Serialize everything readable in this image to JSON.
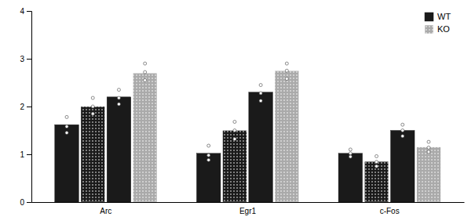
{
  "chart_data": {
    "type": "bar",
    "categories": [
      "Arc",
      "Egr1",
      "c-Fos"
    ],
    "series": [
      {
        "name": "WT",
        "color": "#1a1a1a",
        "values": [
          1.62,
          1.02,
          1.02
        ],
        "points": [
          [
            1.45,
            1.58,
            1.78
          ],
          [
            0.88,
            0.98,
            1.18
          ],
          [
            0.95,
            1.02,
            1.1
          ]
        ]
      },
      {
        "name": "KO",
        "color": "#1a1a1a",
        "marker": "dots",
        "values": [
          2.0,
          1.5,
          0.85
        ],
        "points": [
          [
            1.85,
            2.0,
            2.18
          ],
          [
            1.32,
            1.5,
            1.68
          ],
          [
            0.75,
            0.84,
            0.96
          ]
        ]
      },
      {
        "name": "WT",
        "color": "#1a1a1a",
        "values": [
          2.2,
          2.3,
          1.5
        ],
        "points": [
          [
            2.05,
            2.18,
            2.35
          ],
          [
            2.12,
            2.28,
            2.45
          ],
          [
            1.38,
            1.5,
            1.62
          ]
        ]
      },
      {
        "name": "KO",
        "color": "#aaaaaa",
        "marker": "dots",
        "values": [
          2.7,
          2.75,
          1.15
        ],
        "points": [
          [
            2.55,
            2.72,
            2.9
          ],
          [
            2.58,
            2.75,
            2.9
          ],
          [
            1.05,
            1.14,
            1.26
          ]
        ]
      }
    ],
    "ylim": [
      0,
      4
    ],
    "yticks": [
      0,
      1,
      2,
      3,
      4
    ],
    "grid": false,
    "legend": "upper right"
  }
}
